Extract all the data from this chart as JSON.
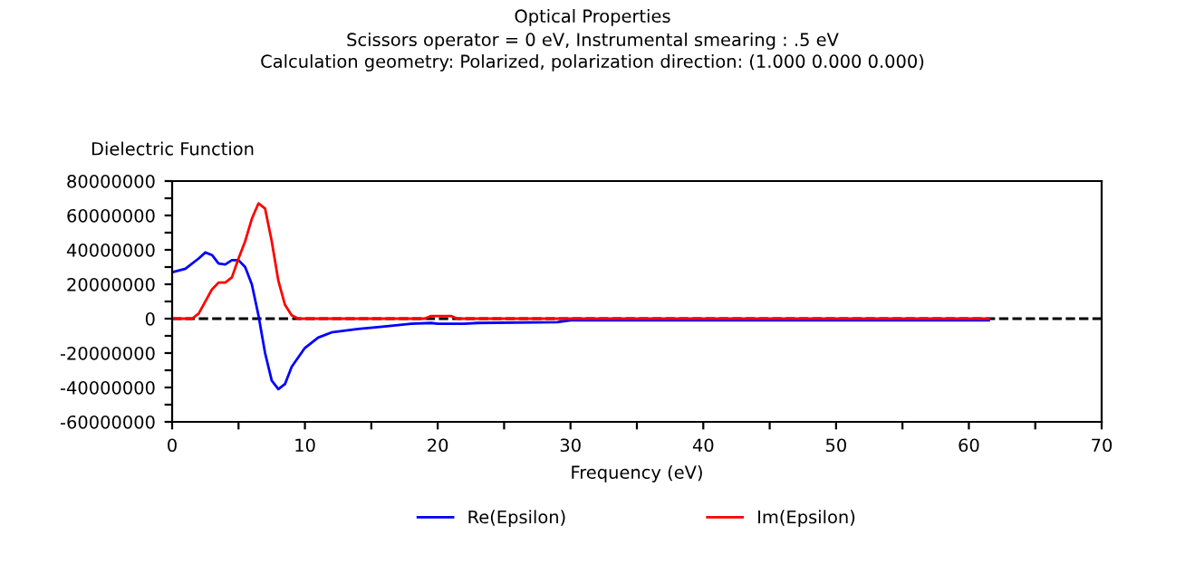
{
  "chart_data": {
    "type": "line",
    "title": "Optical Properties",
    "subtitle": "Scissors operator = 0 eV, Instrumental smearing : .5 eV\nCalculation geometry: Polarized, polarization direction: (1.000 0.000 0.000)",
    "xlabel": "Frequency (eV)",
    "ylabel": "Dielectric Function",
    "series": [
      {
        "name": "Re(Epsilon)",
        "color": "#0000ff",
        "x": [
          0,
          1,
          2,
          2.5,
          3,
          3.5,
          4,
          4.5,
          5,
          5.5,
          6,
          6.5,
          7,
          7.5,
          8,
          8.5,
          9,
          10,
          11,
          12,
          14,
          16,
          18,
          19.5,
          20,
          22,
          23,
          29,
          30,
          61.5
        ],
        "values": [
          27000000,
          29000000,
          35000000,
          38500000,
          37000000,
          32000000,
          31500000,
          34000000,
          34000000,
          30000000,
          20000000,
          2000000,
          -20000000,
          -36000000,
          -41000000,
          -38000000,
          -28000000,
          -17000000,
          -11000000,
          -8000000,
          -6000000,
          -4500000,
          -3000000,
          -2500000,
          -3000000,
          -3000000,
          -2500000,
          -2000000,
          -1000000,
          -1000000
        ]
      },
      {
        "name": "Im(Epsilon)",
        "color": "#ff0000",
        "x": [
          0,
          1.5,
          2,
          3,
          3.5,
          4,
          4.5,
          5,
          5.5,
          6,
          6.5,
          7,
          7.5,
          8,
          8.5,
          9,
          9.5,
          19,
          19.5,
          21,
          21.5,
          61.5
        ],
        "values": [
          0,
          0,
          3000000,
          17000000,
          21000000,
          21000000,
          24000000,
          35000000,
          45000000,
          58000000,
          67000000,
          64000000,
          45000000,
          22000000,
          8000000,
          2000000,
          0,
          0,
          1500000,
          1500000,
          0,
          0
        ]
      }
    ],
    "xlim": [
      0,
      70
    ],
    "xticks": [
      0,
      {
        "value": 5,
        "label": null
      },
      10,
      {
        "value": 15,
        "label": null
      },
      20,
      {
        "value": 25,
        "label": null
      },
      30,
      {
        "value": 35,
        "label": null
      },
      40,
      {
        "value": 45,
        "label": null
      },
      50,
      {
        "value": 55,
        "label": null
      },
      60,
      {
        "value": 65,
        "label": null
      },
      70
    ],
    "ylim": [
      -60000000,
      80000000
    ],
    "yticks": [
      -60000000,
      {
        "value": -50000000,
        "label": null
      },
      -40000000,
      {
        "value": -30000000,
        "label": null
      },
      -20000000,
      {
        "value": -10000000,
        "label": null
      },
      0,
      {
        "value": 10000000,
        "label": null
      },
      20000000,
      {
        "value": 30000000,
        "label": null
      },
      40000000,
      {
        "value": 50000000,
        "label": null
      },
      60000000,
      {
        "value": 70000000,
        "label": null
      },
      80000000
    ],
    "ref_lines": [
      {
        "axis": "y",
        "value": 0,
        "color": "#000000",
        "line_style": "dashed"
      }
    ],
    "grid": false,
    "legend": "bottom",
    "marker": "none",
    "line_style": "solid"
  }
}
